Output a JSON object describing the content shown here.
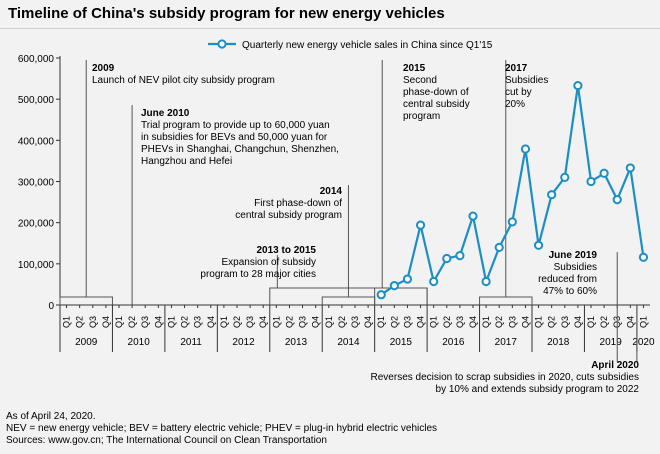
{
  "title": "Timeline of China's subsidy program for new energy vehicles",
  "footnotes": [
    "As of April 24, 2020.",
    "NEV = new energy vehicle; BEV = battery electric vehicle; PHEV = plug-in hybrid electric vehicles",
    "Sources: www.gov.cn; The International Council on Clean Transportation"
  ],
  "colors": {
    "series": "#1b8fc3",
    "axis": "#333333",
    "guide": "#555555",
    "background": "#f2f2f2"
  },
  "chart_data": {
    "type": "line",
    "title": "",
    "xlabel": "",
    "ylabel": "",
    "ylim": [
      0,
      600000
    ],
    "yticks": [
      0,
      100000,
      200000,
      300000,
      400000,
      500000,
      600000
    ],
    "ytick_labels": [
      "0",
      "100,000",
      "200,000",
      "300,000",
      "400,000",
      "500,000",
      "600,000"
    ],
    "quarter_labels": [
      "Q1",
      "Q2",
      "Q3",
      "Q4",
      "Q1",
      "Q2",
      "Q3",
      "Q4",
      "Q1",
      "Q2",
      "Q3",
      "Q4",
      "Q1",
      "Q2",
      "Q3",
      "Q4",
      "Q1",
      "Q2",
      "Q3",
      "Q4",
      "Q1",
      "Q2",
      "Q3",
      "Q4",
      "Q1",
      "Q2",
      "Q3",
      "Q4",
      "Q1",
      "Q2",
      "Q3",
      "Q4",
      "Q1",
      "Q2",
      "Q3",
      "Q4",
      "Q1",
      "Q2",
      "Q3",
      "Q4",
      "Q1",
      "Q2",
      "Q3",
      "Q4",
      "Q1"
    ],
    "year_labels": [
      "2009",
      "2010",
      "2011",
      "2012",
      "2013",
      "2014",
      "2015",
      "2016",
      "2017",
      "2018",
      "2019",
      "2020"
    ],
    "legend": "top",
    "grid": false,
    "series": [
      {
        "name": "Quarterly new energy vehicle sales in China since Q1'15",
        "x": [
          "2015 Q1",
          "2015 Q2",
          "2015 Q3",
          "2015 Q4",
          "2016 Q1",
          "2016 Q2",
          "2016 Q3",
          "2016 Q4",
          "2017 Q1",
          "2017 Q2",
          "2017 Q3",
          "2017 Q4",
          "2018 Q1",
          "2018 Q2",
          "2018 Q3",
          "2018 Q4",
          "2019 Q1",
          "2019 Q2",
          "2019 Q3",
          "2019 Q4",
          "2020 Q1"
        ],
        "values": [
          25000,
          47000,
          63000,
          194000,
          57000,
          113000,
          120000,
          216000,
          57000,
          140000,
          202000,
          379000,
          145000,
          268000,
          310000,
          533000,
          300000,
          320000,
          256000,
          333000,
          116000
        ]
      }
    ],
    "annotations": [
      {
        "id": "a2009",
        "heading": "2009",
        "lines": [
          "Launch of NEV pilot city subsidy program"
        ]
      },
      {
        "id": "a2010",
        "heading": "June 2010",
        "lines": [
          "Trial program to provide up to 60,000 yuan",
          "in subsidies for BEVs and 50,000 yuan for",
          "PHEVs in Shanghai, Changchun, Shenzhen,",
          "Hangzhou and Hefei"
        ]
      },
      {
        "id": "a2014",
        "heading": "2014",
        "lines": [
          "First phase-down of",
          "central subsidy program"
        ]
      },
      {
        "id": "a2013",
        "heading": "2013 to 2015",
        "lines": [
          "Expansion of subsidy",
          "program to 28 major cities"
        ]
      },
      {
        "id": "a2015",
        "heading": "2015",
        "lines": [
          "Second",
          "phase-down of",
          "central subsidy",
          "program"
        ]
      },
      {
        "id": "a2017",
        "heading": "2017",
        "lines": [
          "Subsidies",
          "cut by",
          "20%"
        ]
      },
      {
        "id": "a2019",
        "heading": "June 2019",
        "lines": [
          "Subsidies",
          "reduced from",
          "47% to 60%"
        ]
      },
      {
        "id": "a2020",
        "heading": "April 2020",
        "lines": [
          "Reverses decision to scrap subsidies in 2020, cuts subsidies",
          "by 10% and extends subsidy program to 2022"
        ]
      }
    ]
  }
}
